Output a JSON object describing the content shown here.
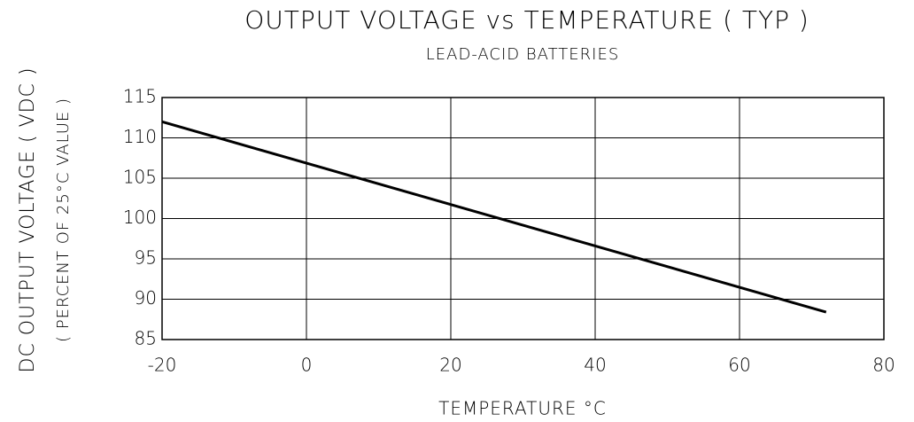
{
  "chart_data": {
    "type": "line",
    "title": "OUTPUT VOLTAGE vs TEMPERATURE ( TYP )",
    "subtitle": "LEAD-ACID BATTERIES",
    "xlabel": "TEMPERATURE °C",
    "ylabel": "DC OUTPUT VOLTAGE ( VDC )",
    "ylabel_sub": "( PERCENT OF 25°C VALUE )",
    "x": [
      -20,
      72
    ],
    "series": [
      {
        "name": "Output voltage",
        "color": "#000000",
        "values": [
          112,
          88.4
        ]
      }
    ],
    "xlim": [
      -20,
      80
    ],
    "xticks": [
      -20,
      0,
      20,
      40,
      60,
      80
    ],
    "ylim": [
      85,
      115
    ],
    "yticks": [
      85,
      90,
      95,
      100,
      105,
      110,
      115
    ],
    "grid": true
  }
}
